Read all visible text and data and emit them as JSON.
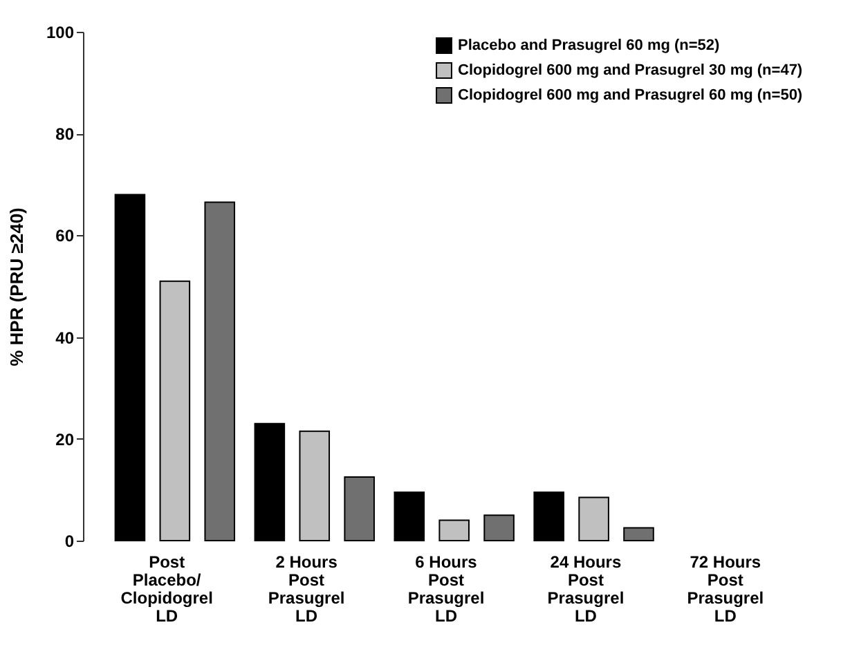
{
  "chart_data": {
    "type": "bar",
    "ylabel": "% HPR (PRU ≥240)",
    "categories": [
      "Post\nPlacebo/\nClopidogrel\nLD",
      "2 Hours\nPost\nPrasugrel\nLD",
      "6 Hours\nPost\nPrasugrel\nLD",
      "24 Hours\nPost\nPrasugrel\nLD",
      "72 Hours\nPost\nPrasugrel\nLD"
    ],
    "series": [
      {
        "name": "Placebo and Prasugrel 60 mg (n=52)",
        "color": "#000000",
        "values": [
          68,
          23,
          9.5,
          9.5,
          0
        ]
      },
      {
        "name": "Clopidogrel 600 mg and Prasugrel 30 mg (n=47)",
        "color": "#c0c0c0",
        "values": [
          51,
          21.5,
          4,
          8.5,
          0
        ]
      },
      {
        "name": "Clopidogrel 600 mg and Prasugrel 60 mg (n=50)",
        "color": "#707070",
        "values": [
          66.5,
          12.5,
          5,
          2.5,
          0
        ]
      }
    ],
    "ylim": [
      0,
      100
    ],
    "yticks": [
      0,
      20,
      40,
      60,
      80,
      100
    ],
    "grid": false,
    "legend": "top right"
  }
}
